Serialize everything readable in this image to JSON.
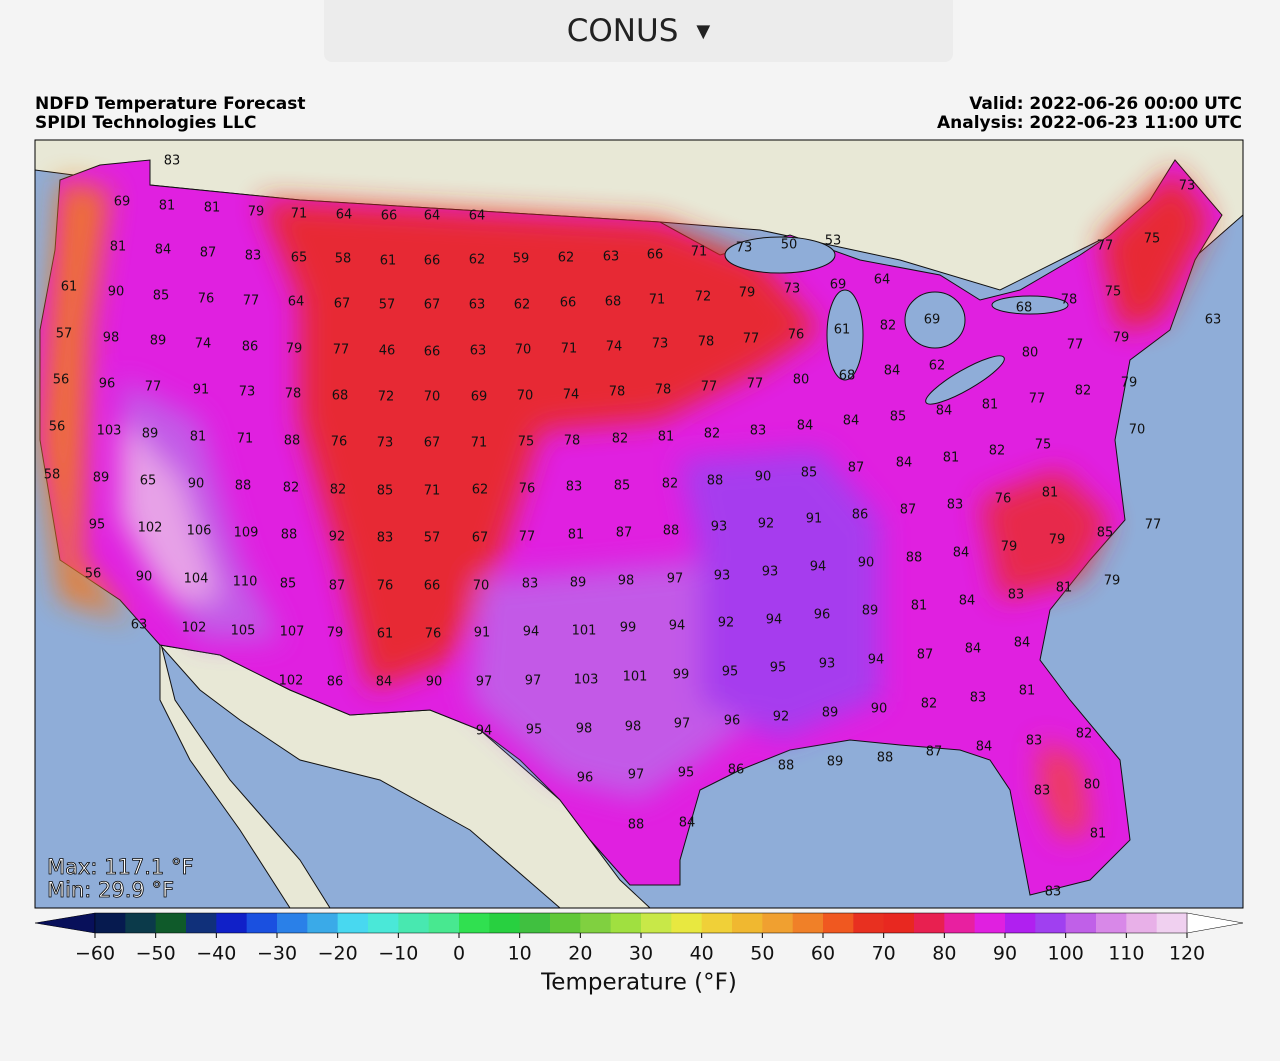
{
  "dropdown": "CONUS",
  "title_left": [
    "NDFD Temperature Forecast",
    "SPIDI Technologies LLC"
  ],
  "title_right": [
    "Valid: 2022-06-26 00:00 UTC",
    "Analysis: 2022-06-23 11:00 UTC"
  ],
  "stats": [
    "Max: 117.1 °F",
    "Min: 29.9 °F"
  ],
  "stations": [
    83,
    69,
    81,
    81,
    79,
    71,
    64,
    66,
    64,
    64,
    81,
    84,
    87,
    83,
    65,
    58,
    61,
    66,
    62,
    59,
    62,
    63,
    66,
    71,
    73,
    50,
    53,
    77,
    75,
    73,
    61,
    90,
    85,
    76,
    77,
    64,
    67,
    57,
    67,
    63,
    62,
    66,
    68,
    71,
    72,
    79,
    73,
    69,
    64,
    78,
    75,
    68,
    57,
    98,
    89,
    74,
    86,
    79,
    77,
    46,
    66,
    63,
    70,
    71,
    74,
    73,
    78,
    77,
    76,
    61,
    82,
    69,
    80,
    77,
    79,
    63,
    56,
    96,
    77,
    91,
    73,
    78,
    68,
    72,
    70,
    69,
    70,
    74,
    78,
    78,
    77,
    77,
    80,
    68,
    84,
    62,
    77,
    82,
    79,
    56,
    103,
    89,
    81,
    71,
    88,
    76,
    73,
    67,
    71,
    75,
    78,
    82,
    81,
    82,
    83,
    84,
    84,
    85,
    84,
    81,
    70,
    75,
    82,
    81,
    58,
    89,
    65,
    90,
    88,
    82,
    82,
    85,
    71,
    62,
    76,
    83,
    85,
    82,
    88,
    90,
    85,
    87,
    84,
    81,
    76,
    95,
    102,
    106,
    109,
    88,
    92,
    83,
    57,
    67,
    77,
    81,
    87,
    88,
    93,
    92,
    91,
    86,
    87,
    83,
    85,
    77,
    56,
    90,
    104,
    110,
    85,
    87,
    76,
    66,
    70,
    83,
    89,
    98,
    97,
    93,
    93,
    94,
    90,
    88,
    84,
    79,
    79,
    79,
    81,
    63,
    102,
    105,
    107,
    79,
    61,
    76,
    91,
    94,
    101,
    99,
    94,
    92,
    94,
    96,
    89,
    81,
    84,
    83,
    102,
    86,
    84,
    90,
    97,
    97,
    103,
    101,
    99,
    95,
    95,
    93,
    94,
    87,
    84,
    84,
    94,
    95,
    98,
    98,
    97,
    96,
    92,
    89,
    90,
    82,
    83,
    81,
    96,
    97,
    95,
    86,
    88,
    89,
    88,
    87,
    84,
    83,
    82,
    88,
    84,
    83,
    80,
    81,
    83
  ],
  "colorbar": {
    "label": "Temperature (°F)",
    "clim": [
      -60,
      120
    ],
    "ticks": [
      {
        "value": -60,
        "label": "−60"
      },
      {
        "value": -50,
        "label": "−50"
      },
      {
        "value": -40,
        "label": "−40"
      },
      {
        "value": -30,
        "label": "−30"
      },
      {
        "value": -20,
        "label": "−20"
      },
      {
        "value": -10,
        "label": "−10"
      },
      0,
      10,
      20,
      30,
      40,
      50,
      60,
      70,
      80,
      90,
      100,
      110,
      120
    ],
    "under_color": "#08105a",
    "over_color": "#ffffff",
    "colors": [
      "#061a4f",
      "#0b3a4a",
      "#0f5a2a",
      "#10307a",
      "#1020c8",
      "#1a50e0",
      "#2a80e8",
      "#3aaae8",
      "#48d8f0",
      "#4ae8d8",
      "#48e8b0",
      "#48e890",
      "#30e050",
      "#28d040",
      "#40c040",
      "#60c838",
      "#80d040",
      "#a0e040",
      "#c8e848",
      "#e8e840",
      "#f0d038",
      "#f0b830",
      "#f0a030",
      "#f08028",
      "#f05820",
      "#e83020",
      "#e82820",
      "#e82050",
      "#e820a0",
      "#e020e0",
      "#b020f0",
      "#a040f0",
      "#c060e8",
      "#d888e8",
      "#e8b0e8",
      "#f0d0f0"
    ]
  }
}
